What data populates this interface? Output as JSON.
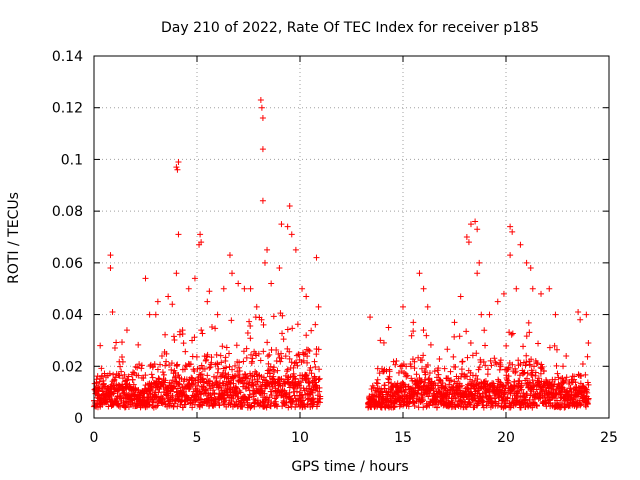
{
  "chart_data": {
    "type": "scatter",
    "title": "Day 210 of 2022, Rate Of TEC Index for receiver p185",
    "xlabel": "GPS time / hours",
    "ylabel": "ROTI / TECUs",
    "xlim": [
      0,
      25
    ],
    "ylim": [
      0,
      0.14
    ],
    "xticks": [
      0,
      5,
      10,
      15,
      20,
      25
    ],
    "xtick_labels": [
      "0",
      "5",
      "10",
      "15",
      "20",
      "25"
    ],
    "yticks": [
      0,
      0.02,
      0.04,
      0.06,
      0.08,
      0.1,
      0.12,
      0.14
    ],
    "ytick_labels": [
      "0",
      "0.02",
      "0.04",
      "0.06",
      "0.08",
      "0.1",
      "0.12",
      "0.14"
    ],
    "grid": true,
    "marker": "+",
    "color": "#ff0000",
    "data_gap_hours": [
      11.0,
      13.3
    ],
    "series": [
      {
        "name": "ROTI",
        "points": [
          [
            0.3,
            0.028
          ],
          [
            0.8,
            0.063
          ],
          [
            0.8,
            0.058
          ],
          [
            0.9,
            0.041
          ],
          [
            1.6,
            0.034
          ],
          [
            2.5,
            0.054
          ],
          [
            2.7,
            0.04
          ],
          [
            3.0,
            0.04
          ],
          [
            3.1,
            0.045
          ],
          [
            3.3,
            0.024
          ],
          [
            3.6,
            0.047
          ],
          [
            3.8,
            0.044
          ],
          [
            4.0,
            0.097
          ],
          [
            4.05,
            0.096
          ],
          [
            4.1,
            0.099
          ],
          [
            4.1,
            0.071
          ],
          [
            4.0,
            0.056
          ],
          [
            4.3,
            0.034
          ],
          [
            4.6,
            0.05
          ],
          [
            4.9,
            0.054
          ],
          [
            5.1,
            0.067
          ],
          [
            5.15,
            0.071
          ],
          [
            5.2,
            0.068
          ],
          [
            5.5,
            0.045
          ],
          [
            5.6,
            0.049
          ],
          [
            6.0,
            0.04
          ],
          [
            6.3,
            0.05
          ],
          [
            6.6,
            0.063
          ],
          [
            6.7,
            0.056
          ],
          [
            7.0,
            0.052
          ],
          [
            7.3,
            0.05
          ],
          [
            7.6,
            0.05
          ],
          [
            7.9,
            0.043
          ],
          [
            8.1,
            0.123
          ],
          [
            8.15,
            0.12
          ],
          [
            8.2,
            0.116
          ],
          [
            8.2,
            0.104
          ],
          [
            8.2,
            0.084
          ],
          [
            8.4,
            0.065
          ],
          [
            8.3,
            0.06
          ],
          [
            8.6,
            0.052
          ],
          [
            9.0,
            0.058
          ],
          [
            9.1,
            0.075
          ],
          [
            9.4,
            0.074
          ],
          [
            9.5,
            0.082
          ],
          [
            9.6,
            0.071
          ],
          [
            9.8,
            0.065
          ],
          [
            10.1,
            0.05
          ],
          [
            10.3,
            0.047
          ],
          [
            10.8,
            0.062
          ],
          [
            10.9,
            0.043
          ],
          [
            13.4,
            0.039
          ],
          [
            13.9,
            0.03
          ],
          [
            14.3,
            0.035
          ],
          [
            15.0,
            0.043
          ],
          [
            15.5,
            0.037
          ],
          [
            15.8,
            0.056
          ],
          [
            16.0,
            0.05
          ],
          [
            16.2,
            0.043
          ],
          [
            17.5,
            0.037
          ],
          [
            17.8,
            0.047
          ],
          [
            18.1,
            0.07
          ],
          [
            18.2,
            0.068
          ],
          [
            18.3,
            0.075
          ],
          [
            18.5,
            0.076
          ],
          [
            18.6,
            0.073
          ],
          [
            18.7,
            0.06
          ],
          [
            18.6,
            0.056
          ],
          [
            18.8,
            0.04
          ],
          [
            19.2,
            0.04
          ],
          [
            19.6,
            0.045
          ],
          [
            19.9,
            0.048
          ],
          [
            20.2,
            0.074
          ],
          [
            20.3,
            0.072
          ],
          [
            20.2,
            0.063
          ],
          [
            20.7,
            0.067
          ],
          [
            20.5,
            0.05
          ],
          [
            21.0,
            0.06
          ],
          [
            21.2,
            0.058
          ],
          [
            21.3,
            0.05
          ],
          [
            21.7,
            0.048
          ],
          [
            22.1,
            0.05
          ],
          [
            22.4,
            0.04
          ],
          [
            23.5,
            0.041
          ],
          [
            23.6,
            0.038
          ],
          [
            23.9,
            0.04
          ],
          [
            24.0,
            0.029
          ]
        ],
        "envelope": {
          "description": "dense band of ROTI points sampled every 30 s",
          "segments": [
            {
              "from": 0,
              "to": 11.0
            },
            {
              "from": 13.3,
              "to": 24.0
            }
          ],
          "hourly_upper": [
            0.02,
            0.027,
            0.024,
            0.03,
            0.03,
            0.034,
            0.036,
            0.036,
            0.04,
            0.038,
            0.04,
            0.034,
            0,
            0,
            0.026,
            0.028,
            0.036,
            0.022,
            0.034,
            0.036,
            0.03,
            0.034,
            0.026,
            0.02,
            0.022
          ],
          "hourly_base": [
            0.008,
            0.009,
            0.008,
            0.01,
            0.011,
            0.012,
            0.012,
            0.013,
            0.014,
            0.013,
            0.013,
            0.012,
            0,
            0,
            0.009,
            0.01,
            0.011,
            0.009,
            0.01,
            0.011,
            0.01,
            0.011,
            0.01,
            0.008,
            0.008
          ]
        }
      }
    ]
  }
}
